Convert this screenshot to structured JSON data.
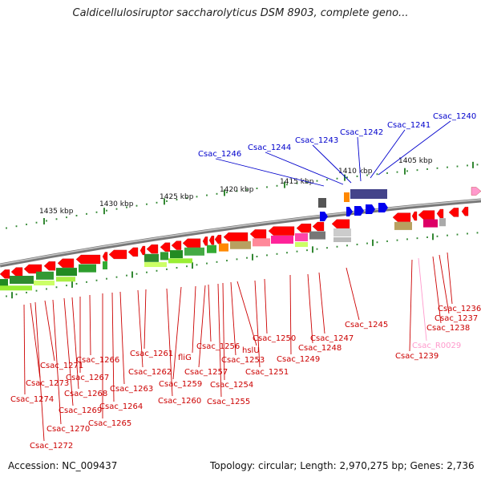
{
  "title": "Caldicellulosiruptor saccharolyticus DSM 8903, complete geno...",
  "footer": {
    "accession": "Accession: NC_009437",
    "summary": "Topology: circular; Length: 2,970,275 bp; Genes: 2,736"
  },
  "colors": {
    "backbone": "#8a8a8a",
    "red_gene": "#ff0000",
    "blue_gene": "#0000ee",
    "label_red": "#cc0000",
    "label_blue": "#0000cc",
    "label_pink": "#ff99cc",
    "tick": "#338833"
  },
  "scale_labels": [
    "1405 kbp",
    "1410 kbp",
    "1415 kbp",
    "1420 kbp",
    "1425 kbp",
    "1430 kbp",
    "1435 kbp"
  ],
  "top_labels": [
    "Csac_1240",
    "Csac_1241",
    "Csac_1242",
    "Csac_1243",
    "Csac_1244",
    "Csac_1246"
  ],
  "bottom_labels": [
    "Csac_1236",
    "Csac_1237",
    "Csac_1238",
    "Csac_R0029",
    "Csac_1239",
    "Csac_1245",
    "Csac_1247",
    "Csac_1248",
    "Csac_1249",
    "Csac_1250",
    "Csac_1251",
    "hslU",
    "Csac_1253",
    "Csac_1254",
    "Csac_1255",
    "Csac_1256",
    "Csac_1257",
    "fliG",
    "Csac_1259",
    "Csac_1260",
    "Csac_1261",
    "Csac_1262",
    "Csac_1263",
    "Csac_1264",
    "Csac_1265",
    "Csac_1266",
    "Csac_1267",
    "Csac_1268",
    "Csac_1269",
    "Csac_1270",
    "Csac_1271",
    "Csac_1272",
    "Csac_1273",
    "Csac_1274"
  ]
}
